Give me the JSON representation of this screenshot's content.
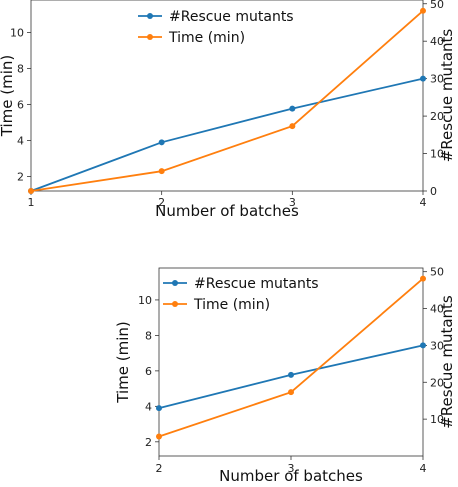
{
  "chart_data": [
    {
      "type": "line",
      "xlabel": "Number of batches",
      "ylabel_left": "Time (min)",
      "ylabel_right": "#Rescue mutants",
      "x": [
        1,
        2,
        3,
        4
      ],
      "xticks": [
        "1",
        "2",
        "3",
        "4"
      ],
      "yticks_left": [
        "2",
        "4",
        "6",
        "8",
        "10"
      ],
      "yticks_right": [
        "0",
        "10",
        "20",
        "30",
        "40",
        "50"
      ],
      "ylim_left": [
        1.2,
        11.8
      ],
      "ylim_right": [
        0,
        51
      ],
      "series": [
        {
          "name": "#Rescue mutants",
          "axis": "right",
          "color": "#1f77b4",
          "values": [
            0,
            13,
            22,
            30
          ]
        },
        {
          "name": "Time (min)",
          "axis": "left",
          "color": "#ff7f0e",
          "values": [
            1.2,
            2.3,
            4.8,
            11.2
          ]
        }
      ],
      "legend": "top-center",
      "grid": false
    },
    {
      "type": "line",
      "xlabel": "Number of batches",
      "ylabel_left": "Time (min)",
      "ylabel_right": "#Rescue mutants",
      "x": [
        2,
        3,
        4
      ],
      "xticks": [
        "2",
        "3",
        "4"
      ],
      "yticks_left": [
        "2",
        "4",
        "6",
        "8",
        "10"
      ],
      "yticks_right": [
        "10",
        "20",
        "30",
        "40",
        "50"
      ],
      "ylim_left": [
        1.2,
        11.8
      ],
      "ylim_right": [
        0,
        51
      ],
      "series": [
        {
          "name": "#Rescue mutants",
          "axis": "right",
          "color": "#1f77b4",
          "values": [
            13,
            22,
            30
          ]
        },
        {
          "name": "Time (min)",
          "axis": "left",
          "color": "#ff7f0e",
          "values": [
            2.3,
            4.8,
            11.2
          ]
        }
      ],
      "legend": "top-left",
      "grid": false
    }
  ]
}
